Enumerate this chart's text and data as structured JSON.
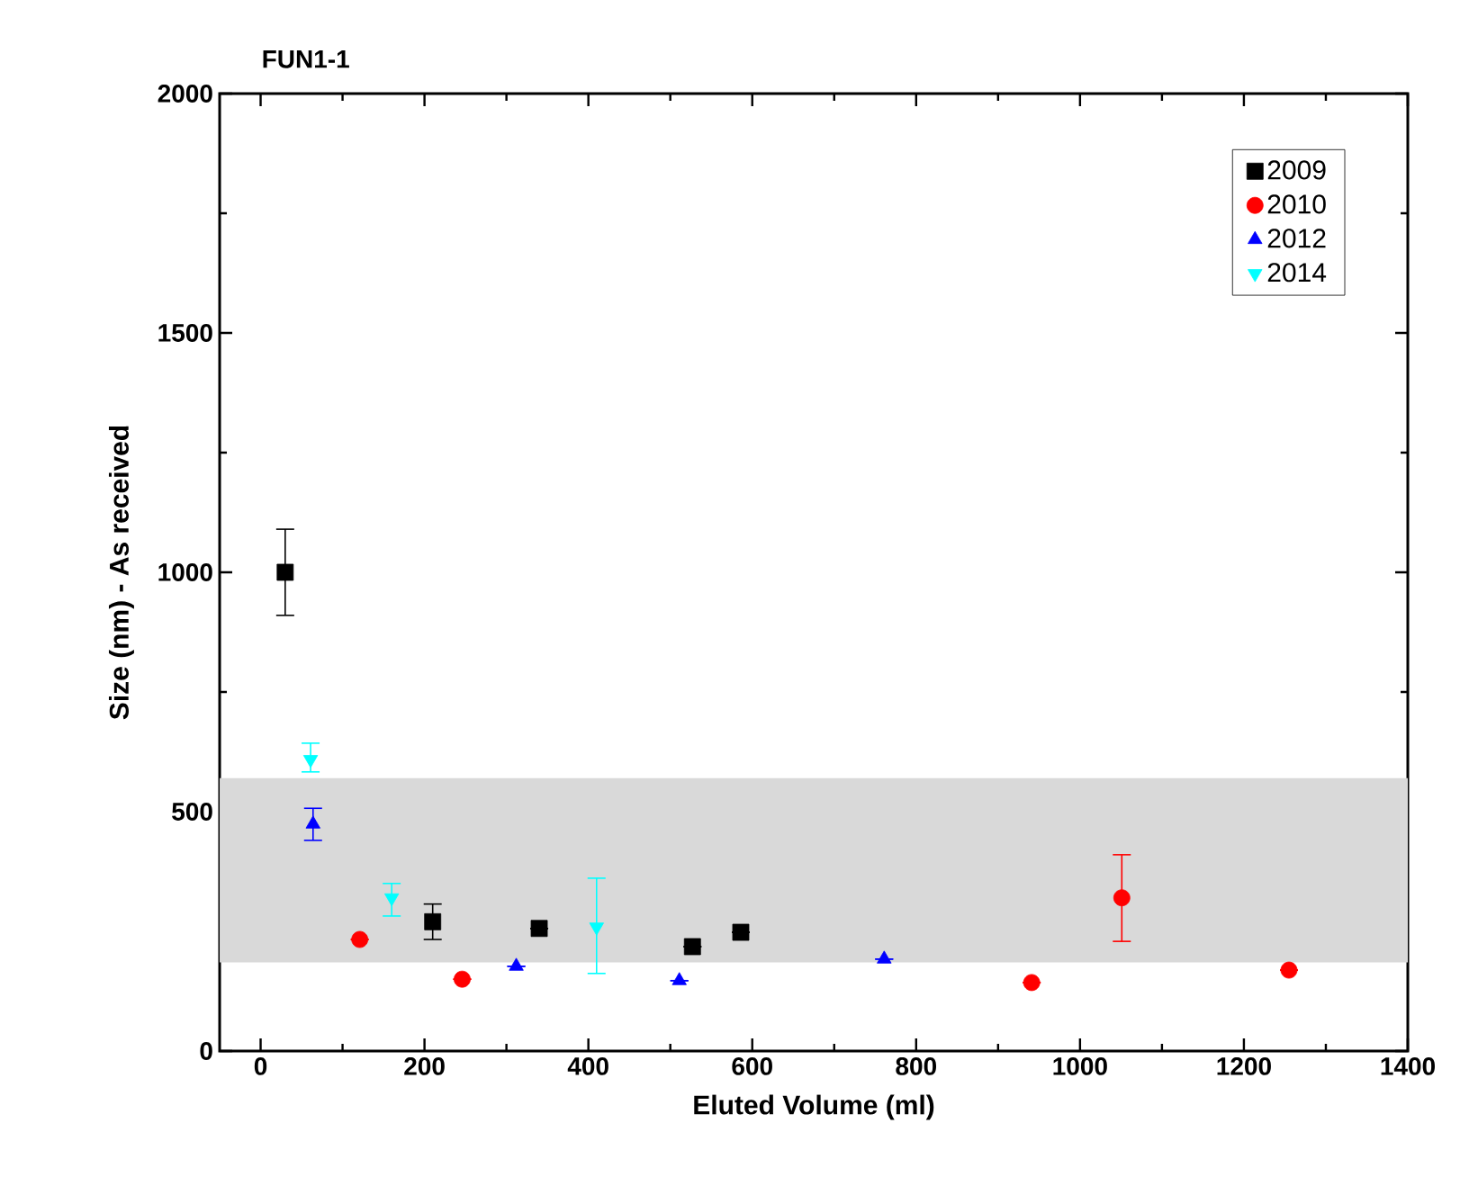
{
  "chart_data": {
    "type": "scatter",
    "title": "FUN1-1",
    "xlabel": "Eluted Volume (ml)",
    "ylabel": "Size (nm) - As received",
    "xlim": [
      -50,
      1400
    ],
    "xticks": [
      0,
      200,
      400,
      600,
      800,
      1000,
      1200,
      1400
    ],
    "ylim": [
      0,
      2000
    ],
    "yticks": [
      0,
      500,
      1000,
      1500,
      2000
    ],
    "legend": "top right",
    "bands": [
      {
        "axis": "y",
        "from": 185,
        "to": 570,
        "color": "#d9d9d9"
      }
    ],
    "series": [
      {
        "name": "2009",
        "color": "#000000",
        "marker": "square",
        "x": [
          30,
          210,
          340,
          527,
          586
        ],
        "values": [
          1000,
          270,
          256,
          218,
          248
        ],
        "errors": [
          90,
          37,
          null,
          null,
          null
        ]
      },
      {
        "name": "2010",
        "color": "#ff0000",
        "marker": "circle",
        "x": [
          121,
          246,
          941,
          1051,
          1255
        ],
        "values": [
          233,
          150,
          143,
          320,
          169
        ],
        "errors": [
          null,
          null,
          null,
          [
            229,
            410
          ],
          null
        ]
      },
      {
        "name": "2012",
        "color": "#0000ff",
        "marker": "triangle",
        "x": [
          64,
          312,
          511,
          761
        ],
        "values": [
          474,
          177,
          147,
          192
        ],
        "errors": [
          [
            440,
            507
          ],
          null,
          null,
          null
        ]
      },
      {
        "name": "2014",
        "color": "#00ffff",
        "marker": "triangle-down",
        "x": [
          61,
          160,
          410
        ],
        "values": [
          609,
          320,
          259
        ],
        "errors": [
          [
            583,
            643
          ],
          [
            282,
            350
          ],
          [
            162,
            361
          ]
        ]
      }
    ]
  }
}
